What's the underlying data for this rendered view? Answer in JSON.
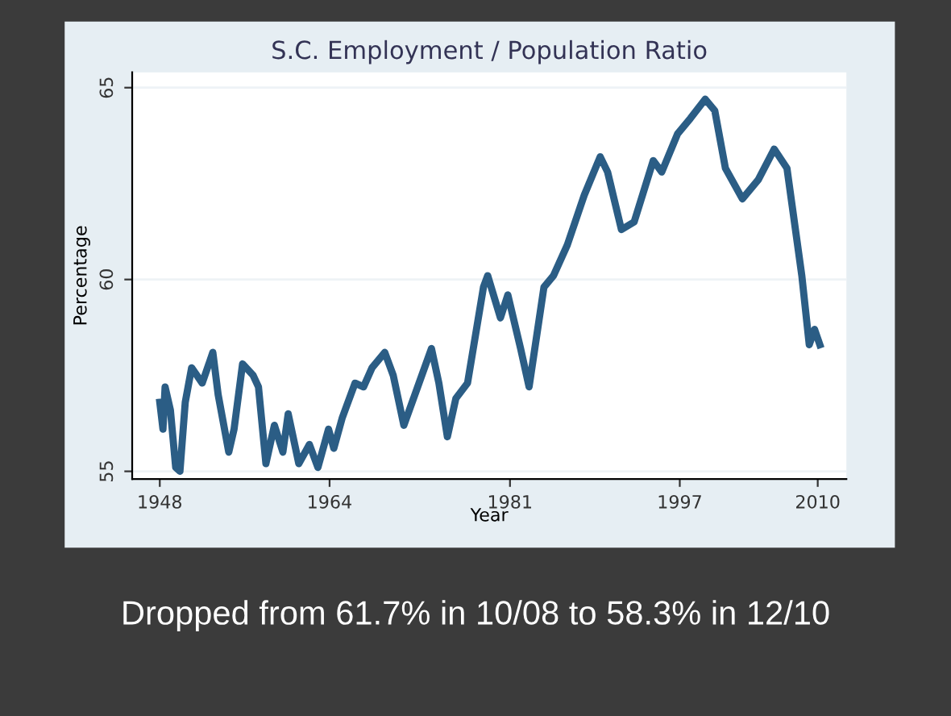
{
  "chart_data": {
    "type": "line",
    "title": "S.C. Employment / Population Ratio",
    "xlabel": "Year",
    "ylabel": "Percentage",
    "x": [
      1948.0,
      1948.3,
      1948.5,
      1949.0,
      1949.5,
      1949.9,
      1950.4,
      1951.0,
      1952.0,
      1953.0,
      1953.5,
      1954.5,
      1955.0,
      1955.8,
      1956.8,
      1957.3,
      1958.0,
      1958.8,
      1959.6,
      1960.1,
      1961.1,
      1962.1,
      1962.9,
      1963.9,
      1964.4,
      1965.2,
      1966.4,
      1967.2,
      1968.0,
      1969.2,
      1970.0,
      1971.0,
      1972.3,
      1973.6,
      1974.3,
      1975.1,
      1975.9,
      1977.0,
      1978.5,
      1978.9,
      1980.1,
      1980.8,
      1982.0,
      1982.8,
      1984.2,
      1985.1,
      1986.4,
      1988.0,
      1989.5,
      1990.2,
      1991.5,
      1992.7,
      1994.5,
      1995.3,
      1996.8,
      1998.0,
      1999.4,
      2000.3,
      2001.3,
      2002.9,
      2004.4,
      2005.9,
      2007.1,
      2008.5,
      2009.2,
      2009.7,
      2010.2
    ],
    "series": [
      {
        "color": "#2b5d85",
        "values": [
          56.8,
          56.1,
          57.2,
          56.6,
          55.1,
          55.0,
          56.8,
          57.7,
          57.3,
          58.1,
          57.0,
          55.5,
          56.1,
          57.8,
          57.5,
          57.2,
          55.2,
          56.2,
          55.5,
          56.5,
          55.2,
          55.7,
          55.1,
          56.1,
          55.6,
          56.4,
          57.3,
          57.2,
          57.7,
          58.1,
          57.5,
          56.2,
          57.2,
          58.2,
          57.3,
          55.9,
          56.9,
          57.3,
          59.8,
          60.1,
          59.0,
          59.6,
          58.2,
          57.2,
          59.8,
          60.1,
          60.9,
          62.2,
          63.2,
          62.8,
          61.3,
          61.5,
          63.1,
          62.8,
          63.8,
          64.2,
          64.7,
          64.4,
          62.9,
          62.1,
          62.6,
          63.4,
          62.9,
          60.1,
          58.3,
          58.7,
          58.3
        ]
      }
    ],
    "xlim": [
      1945.4,
      2012.7
    ],
    "xticks": [
      1948,
      1964,
      1981,
      1997,
      2010
    ],
    "ylim": [
      54.8,
      65.4
    ],
    "yticks": [
      55,
      60,
      65
    ],
    "grid": "y",
    "marker": "none",
    "line_style": "solid",
    "annotations": [
      "Dropped from 61.7% in 10/08 to 58.3% in 12/10"
    ]
  }
}
